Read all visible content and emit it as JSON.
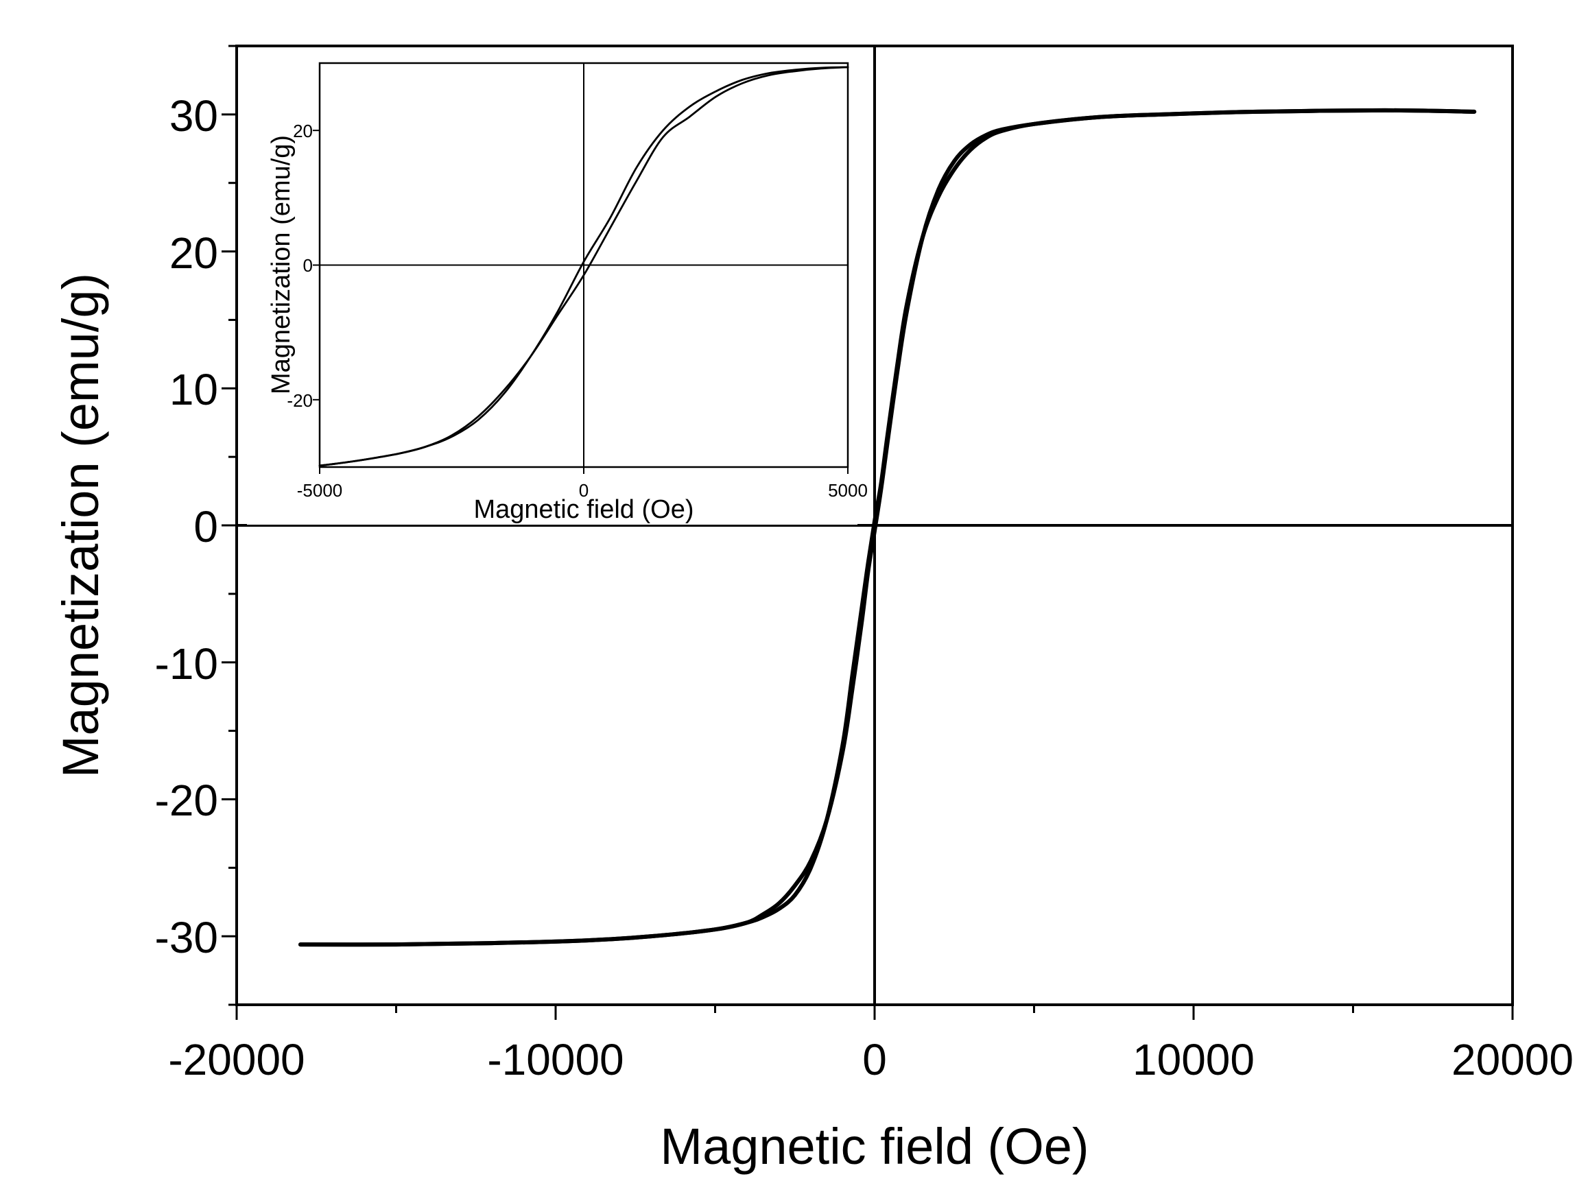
{
  "chart_data": [
    {
      "id": "main",
      "type": "line",
      "title": "",
      "xlabel": "Magnetic field (Oe)",
      "ylabel": "Magnetization (emu/g)",
      "xlim": [
        -20000,
        20000
      ],
      "ylim": [
        -35,
        35
      ],
      "xticks": [
        -20000,
        -10000,
        0,
        10000,
        20000
      ],
      "xtick_labels": [
        "-20000",
        "-10000",
        "0",
        "10000",
        "20000"
      ],
      "yticks": [
        -30,
        -20,
        -10,
        0,
        10,
        20,
        30
      ],
      "ytick_labels": [
        "-30",
        "-20",
        "-10",
        "0",
        "10",
        "20",
        "30"
      ],
      "x_minor_step": 5000,
      "y_minor_step": 5,
      "zero_lines": true,
      "grid": false,
      "legend": "none",
      "color": "#000000",
      "series": [
        {
          "branch": "descending",
          "points": [
            [
              18800,
              30.2
            ],
            [
              16000,
              30.3
            ],
            [
              12000,
              30.2
            ],
            [
              9000,
              30.0
            ],
            [
              7000,
              29.8
            ],
            [
              5000,
              29.3
            ],
            [
              4000,
              28.8
            ],
            [
              3500,
              28.3
            ],
            [
              3000,
              27.4
            ],
            [
              2500,
              26.0
            ],
            [
              2000,
              24.0
            ],
            [
              1500,
              21.0
            ],
            [
              1000,
              16.0
            ],
            [
              700,
              11.5
            ],
            [
              400,
              6.5
            ],
            [
              200,
              3.0
            ],
            [
              0,
              0.3
            ],
            [
              -200,
              -2.7
            ],
            [
              -400,
              -6.0
            ],
            [
              -700,
              -11.0
            ],
            [
              -1000,
              -16.0
            ],
            [
              -1500,
              -21.5
            ],
            [
              -2000,
              -25.0
            ],
            [
              -2500,
              -27.0
            ],
            [
              -3000,
              -28.0
            ],
            [
              -3500,
              -28.6
            ],
            [
              -4000,
              -29.0
            ],
            [
              -5000,
              -29.5
            ],
            [
              -7000,
              -30.0
            ],
            [
              -9000,
              -30.3
            ],
            [
              -12000,
              -30.5
            ],
            [
              -15000,
              -30.6
            ],
            [
              -18000,
              -30.6
            ]
          ]
        },
        {
          "branch": "ascending",
          "points": [
            [
              -18000,
              -30.6
            ],
            [
              -15000,
              -30.6
            ],
            [
              -12000,
              -30.5
            ],
            [
              -9000,
              -30.3
            ],
            [
              -7000,
              -30.0
            ],
            [
              -5000,
              -29.5
            ],
            [
              -4000,
              -29.0
            ],
            [
              -3500,
              -28.4
            ],
            [
              -3000,
              -27.6
            ],
            [
              -2500,
              -26.3
            ],
            [
              -2000,
              -24.5
            ],
            [
              -1500,
              -21.5
            ],
            [
              -1000,
              -16.5
            ],
            [
              -700,
              -12.0
            ],
            [
              -400,
              -7.0
            ],
            [
              -200,
              -3.3
            ],
            [
              0,
              -0.4
            ],
            [
              200,
              2.6
            ],
            [
              400,
              6.0
            ],
            [
              700,
              11.0
            ],
            [
              1000,
              15.5
            ],
            [
              1500,
              21.0
            ],
            [
              2000,
              24.5
            ],
            [
              2500,
              26.6
            ],
            [
              3000,
              27.8
            ],
            [
              3500,
              28.5
            ],
            [
              4000,
              28.9
            ],
            [
              5000,
              29.3
            ],
            [
              7000,
              29.8
            ],
            [
              9000,
              30.0
            ],
            [
              12000,
              30.2
            ],
            [
              16000,
              30.3
            ],
            [
              18800,
              30.2
            ]
          ]
        }
      ]
    },
    {
      "id": "inset",
      "type": "line",
      "title": "",
      "xlabel": "Magnetic field (Oe)",
      "ylabel": "Magnetization (emu/g)",
      "xlim": [
        -5000,
        5000
      ],
      "ylim": [
        -30,
        30
      ],
      "xticks": [
        -5000,
        0,
        5000
      ],
      "xtick_labels": [
        "-5000",
        "0",
        "5000"
      ],
      "yticks": [
        -20,
        0,
        20
      ],
      "ytick_labels": [
        "-20",
        "0",
        "20"
      ],
      "zero_lines": true,
      "grid": false,
      "legend": "none",
      "color": "#000000",
      "series": [
        {
          "branch": "descending",
          "points": [
            [
              5000,
              29.4
            ],
            [
              4500,
              29.3
            ],
            [
              4000,
              29.0
            ],
            [
              3500,
              28.5
            ],
            [
              3000,
              27.5
            ],
            [
              2500,
              25.8
            ],
            [
              2000,
              23.5
            ],
            [
              1500,
              20.0
            ],
            [
              1000,
              14.5
            ],
            [
              500,
              7.0
            ],
            [
              0,
              0.5
            ],
            [
              -500,
              -7.0
            ],
            [
              -1000,
              -13.5
            ],
            [
              -1500,
              -19.0
            ],
            [
              -2000,
              -23.0
            ],
            [
              -2500,
              -25.5
            ],
            [
              -3000,
              -27.0
            ],
            [
              -3500,
              -28.0
            ],
            [
              -4000,
              -28.7
            ],
            [
              -4500,
              -29.3
            ],
            [
              -5000,
              -29.8
            ]
          ]
        },
        {
          "branch": "ascending",
          "points": [
            [
              -5000,
              -29.8
            ],
            [
              -4500,
              -29.3
            ],
            [
              -4000,
              -28.7
            ],
            [
              -3500,
              -28.0
            ],
            [
              -3000,
              -27.0
            ],
            [
              -2500,
              -25.3
            ],
            [
              -2000,
              -22.5
            ],
            [
              -1500,
              -18.5
            ],
            [
              -1000,
              -13.5
            ],
            [
              -500,
              -7.5
            ],
            [
              0,
              -1.5
            ],
            [
              500,
              5.5
            ],
            [
              1000,
              12.5
            ],
            [
              1500,
              19.0
            ],
            [
              2000,
              22.0
            ],
            [
              2500,
              25.0
            ],
            [
              3000,
              27.0
            ],
            [
              3500,
              28.2
            ],
            [
              4000,
              28.8
            ],
            [
              4500,
              29.2
            ],
            [
              5000,
              29.4
            ]
          ]
        }
      ]
    }
  ]
}
